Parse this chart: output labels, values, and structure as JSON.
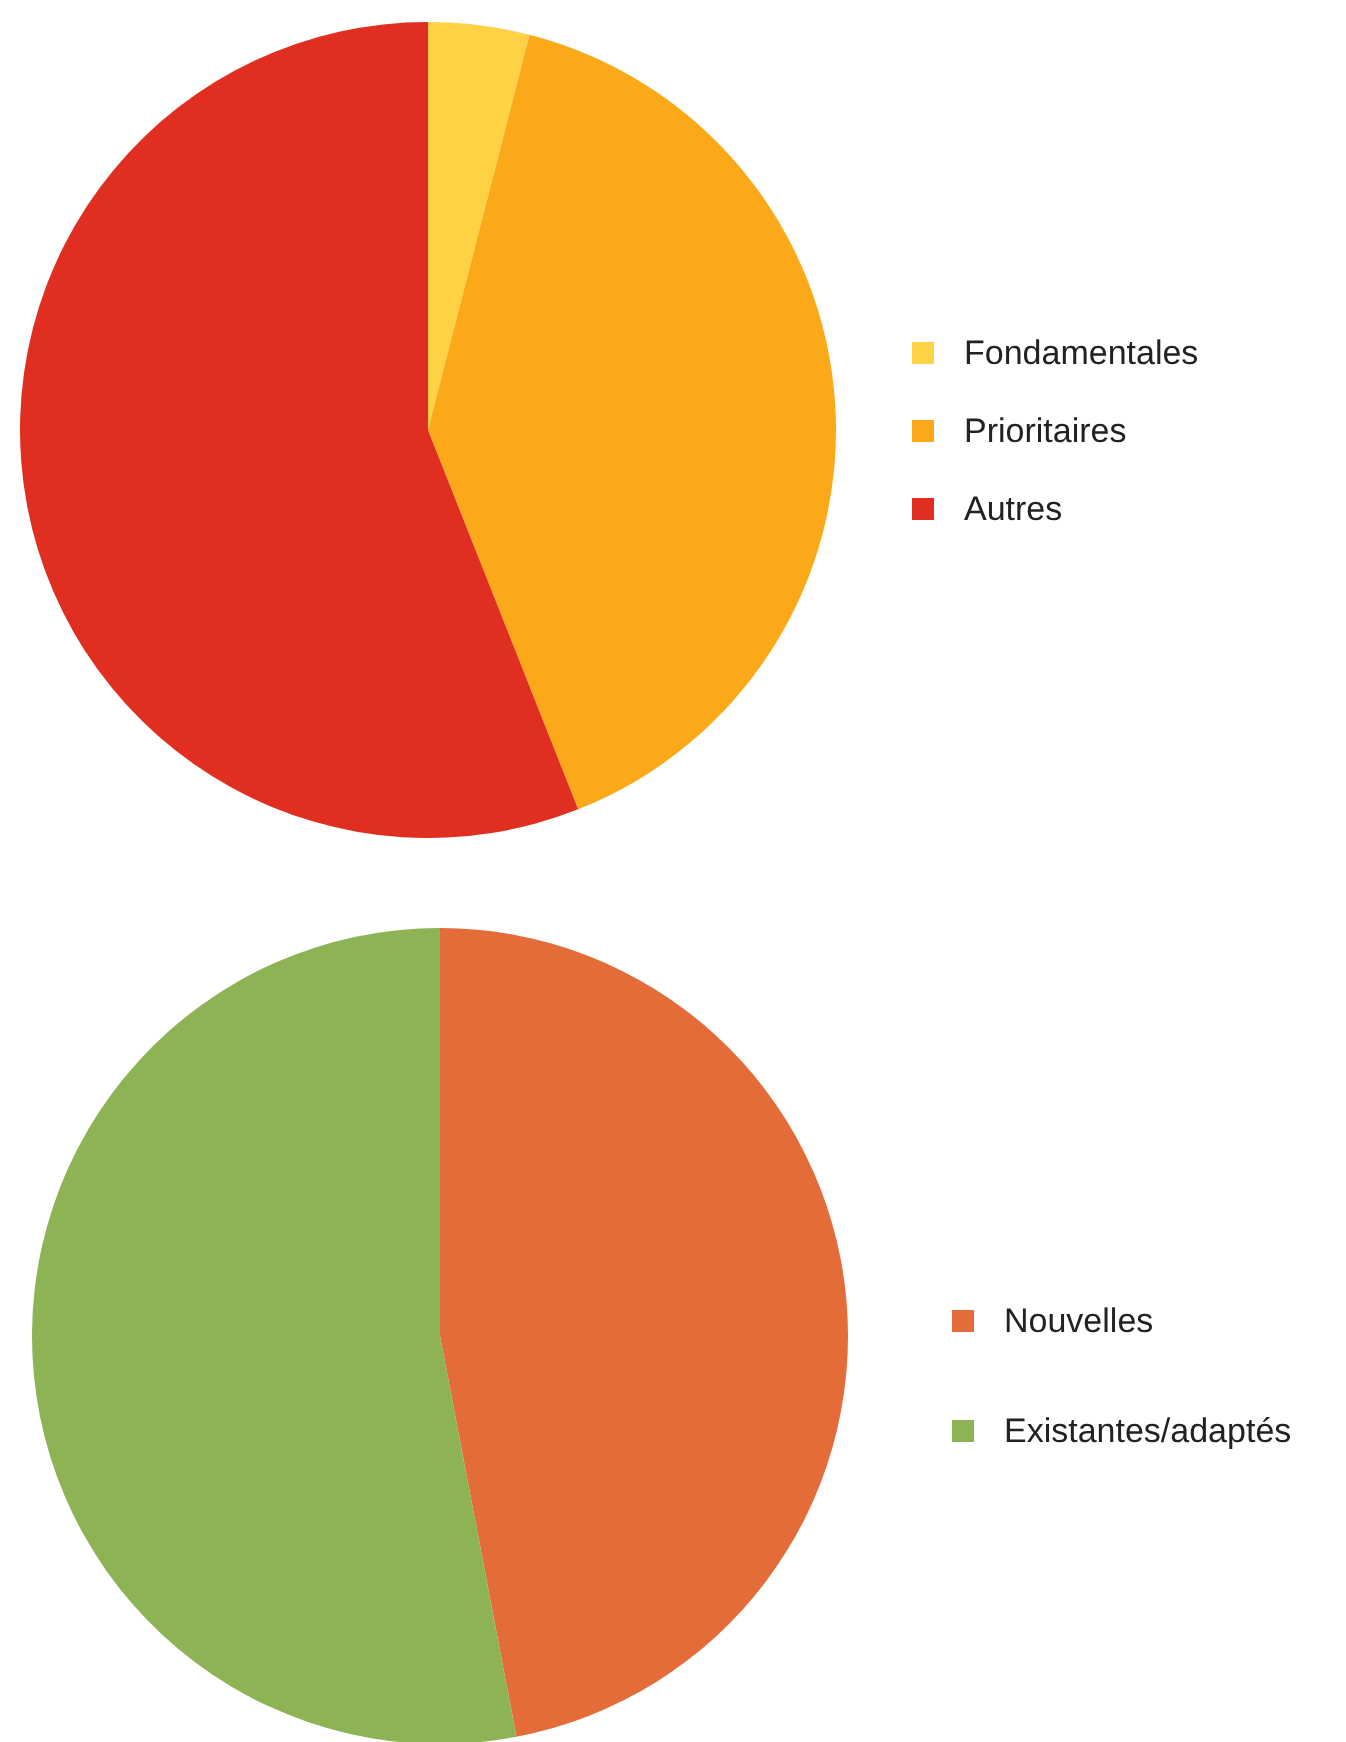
{
  "chart_data": [
    {
      "type": "pie",
      "categories": [
        "Fondamentales",
        "Prioritaires",
        "Autres"
      ],
      "values": [
        4,
        40,
        56
      ],
      "colors": [
        "#ffd145",
        "#fba919",
        "#e02f20"
      ],
      "legend": "right"
    },
    {
      "type": "pie",
      "categories": [
        "Nouvelles",
        "Existantes/adaptés"
      ],
      "values": [
        47,
        53
      ],
      "colors": [
        "#e46c38",
        "#8db355"
      ],
      "legend": "right"
    }
  ]
}
